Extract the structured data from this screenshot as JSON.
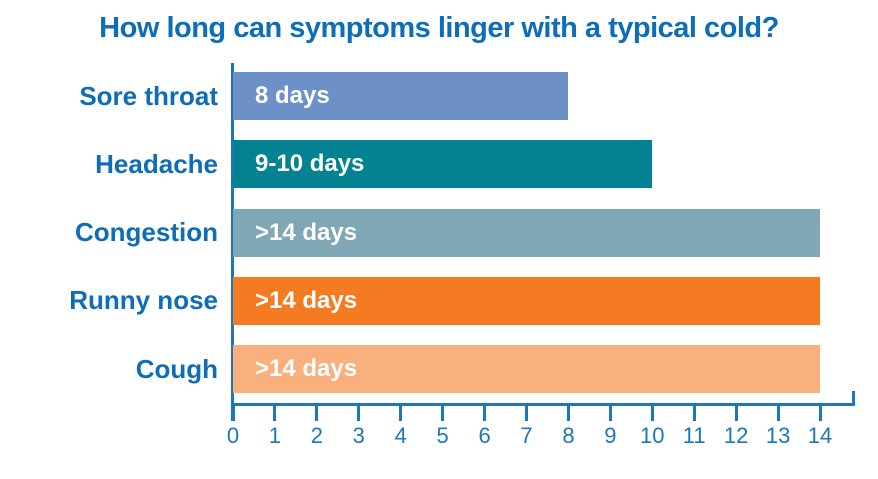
{
  "chart_data": {
    "type": "bar",
    "orientation": "horizontal",
    "title": "How long can symptoms linger with a typical cold?",
    "categories": [
      "Sore throat",
      "Headache",
      "Congestion",
      "Runny nose",
      "Cough"
    ],
    "values": [
      8,
      10,
      14,
      14,
      14
    ],
    "bar_labels": [
      "8 days",
      "9-10 days",
      ">14 days",
      ">14 days",
      ">14 days"
    ],
    "bar_colors": [
      "#6D90C8",
      "#048291",
      "#7FA7B6",
      "#F47B21",
      "#F9B07C"
    ],
    "x_ticks": [
      0,
      1,
      2,
      3,
      4,
      5,
      6,
      7,
      8,
      9,
      10,
      11,
      12,
      13,
      14
    ],
    "xlim": [
      0,
      14
    ],
    "xlabel": "",
    "ylabel": "",
    "grid": false,
    "legend": false,
    "colors": {
      "title_text": "#0D6EB7",
      "category_text": "#0D6EB7",
      "axis": "#1C76BD",
      "tick_text": "#1C76BD",
      "bar_value_text": "#ffffff",
      "background": "#ffffff"
    }
  }
}
